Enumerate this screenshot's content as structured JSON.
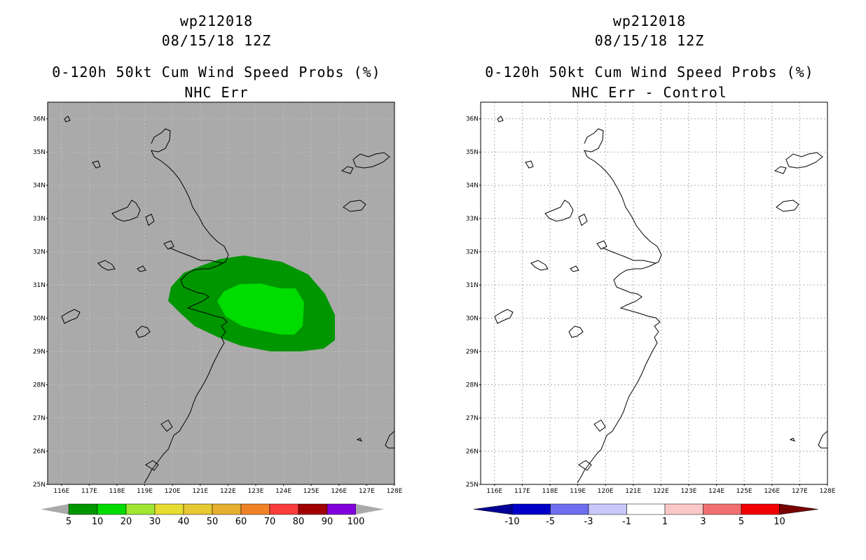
{
  "panels": [
    {
      "storm_id": "wp212018",
      "datetime": "08/15/18 12Z",
      "product": "0-120h 50kt Cum Wind Speed Probs (%)",
      "subtitle": "NHC Err",
      "background": "#aaaaaa",
      "colorbar": {
        "colors": [
          "#009600",
          "#00dc00",
          "#a0e632",
          "#e6dc32",
          "#e6c832",
          "#e6af2d",
          "#f08228",
          "#fa3c3c",
          "#a00000",
          "#8200dc"
        ],
        "end_colors": [
          "#aaaaaa",
          "#aaaaaa"
        ],
        "labels": [
          "5",
          "10",
          "20",
          "30",
          "40",
          "50",
          "60",
          "70",
          "80",
          "90",
          "100"
        ]
      }
    },
    {
      "storm_id": "wp212018",
      "datetime": "08/15/18 12Z",
      "product": "0-120h 50kt Cum Wind Speed Probs (%)",
      "subtitle": "NHC Err - Control",
      "background": "#ffffff",
      "colorbar": {
        "colors": [
          "#0000c8",
          "#6e6ef0",
          "#c8c8fa",
          "#ffffff",
          "#fac8c8",
          "#f07070",
          "#f00000"
        ],
        "end_colors": [
          "#000096",
          "#780000"
        ],
        "labels": [
          "-10",
          "-5",
          "-3",
          "-1",
          "1",
          "3",
          "5",
          "10"
        ]
      }
    }
  ],
  "map": {
    "lat_labels": [
      "36N",
      "35N",
      "34N",
      "33N",
      "32N",
      "31N",
      "30N",
      "29N",
      "28N",
      "27N",
      "26N",
      "25N"
    ],
    "lon_labels": [
      "116E",
      "117E",
      "118E",
      "119E",
      "120E",
      "121E",
      "122E",
      "123E",
      "124E",
      "125E",
      "126E",
      "127E",
      "128E"
    ],
    "lon_range": [
      115.5,
      128
    ],
    "lat_range": [
      25,
      36.5
    ]
  },
  "probability_fields": {
    "band_5_10_color": "#009600",
    "band_10_20_color": "#00dc00"
  }
}
